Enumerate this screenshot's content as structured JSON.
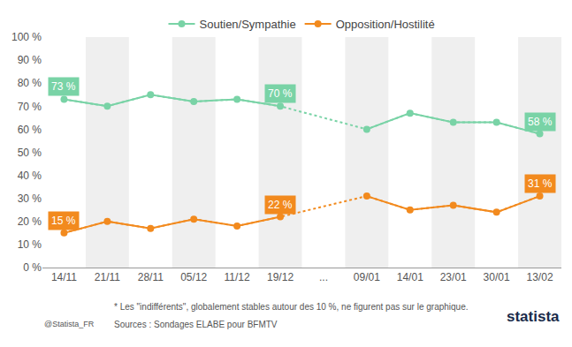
{
  "chart_data": {
    "type": "line",
    "categories": [
      "14/11",
      "21/11",
      "28/11",
      "05/12",
      "11/12",
      "19/12",
      "...",
      "09/01",
      "14/01",
      "23/01",
      "30/01",
      "13/02"
    ],
    "series": [
      {
        "name": "Soutien/Sympathie",
        "color": "#79d3a6",
        "values": [
          73,
          70,
          75,
          72,
          73,
          70,
          null,
          60,
          67,
          63,
          63,
          58
        ],
        "value_labels": [
          "73 %",
          null,
          null,
          null,
          null,
          "70 %",
          null,
          null,
          null,
          null,
          null,
          "58 %"
        ]
      },
      {
        "name": "Opposition/Hostilité",
        "color": "#f28a1e",
        "values": [
          15,
          20,
          17,
          21,
          18,
          22,
          null,
          31,
          25,
          27,
          24,
          31
        ],
        "value_labels": [
          "15 %",
          null,
          null,
          null,
          null,
          "22 %",
          null,
          null,
          null,
          null,
          null,
          "31 %"
        ]
      }
    ],
    "ylim": [
      0,
      100
    ],
    "yticks": [
      {
        "value": 0,
        "label": "0 %"
      },
      {
        "value": 10,
        "label": "10 %"
      },
      {
        "value": 20,
        "label": "20 %"
      },
      {
        "value": 30,
        "label": "30 %"
      },
      {
        "value": 40,
        "label": "40 %"
      },
      {
        "value": 50,
        "label": "50 %"
      },
      {
        "value": 60,
        "label": "60 %"
      },
      {
        "value": 70,
        "label": "70 %"
      },
      {
        "value": 80,
        "label": "80 %"
      },
      {
        "value": 90,
        "label": "90 %"
      },
      {
        "value": 100,
        "label": "100 %"
      }
    ],
    "grid": false,
    "legend": "top",
    "marker": "circle",
    "data_labels": true,
    "annotations": [
      "* Les \"indifférents\", globalement stables autour des 10 %, ne figurent pas sur le graphique.",
      "Sources : Sondages ELABE pour BFMTV",
      "@Statista_FR",
      "statista"
    ]
  }
}
